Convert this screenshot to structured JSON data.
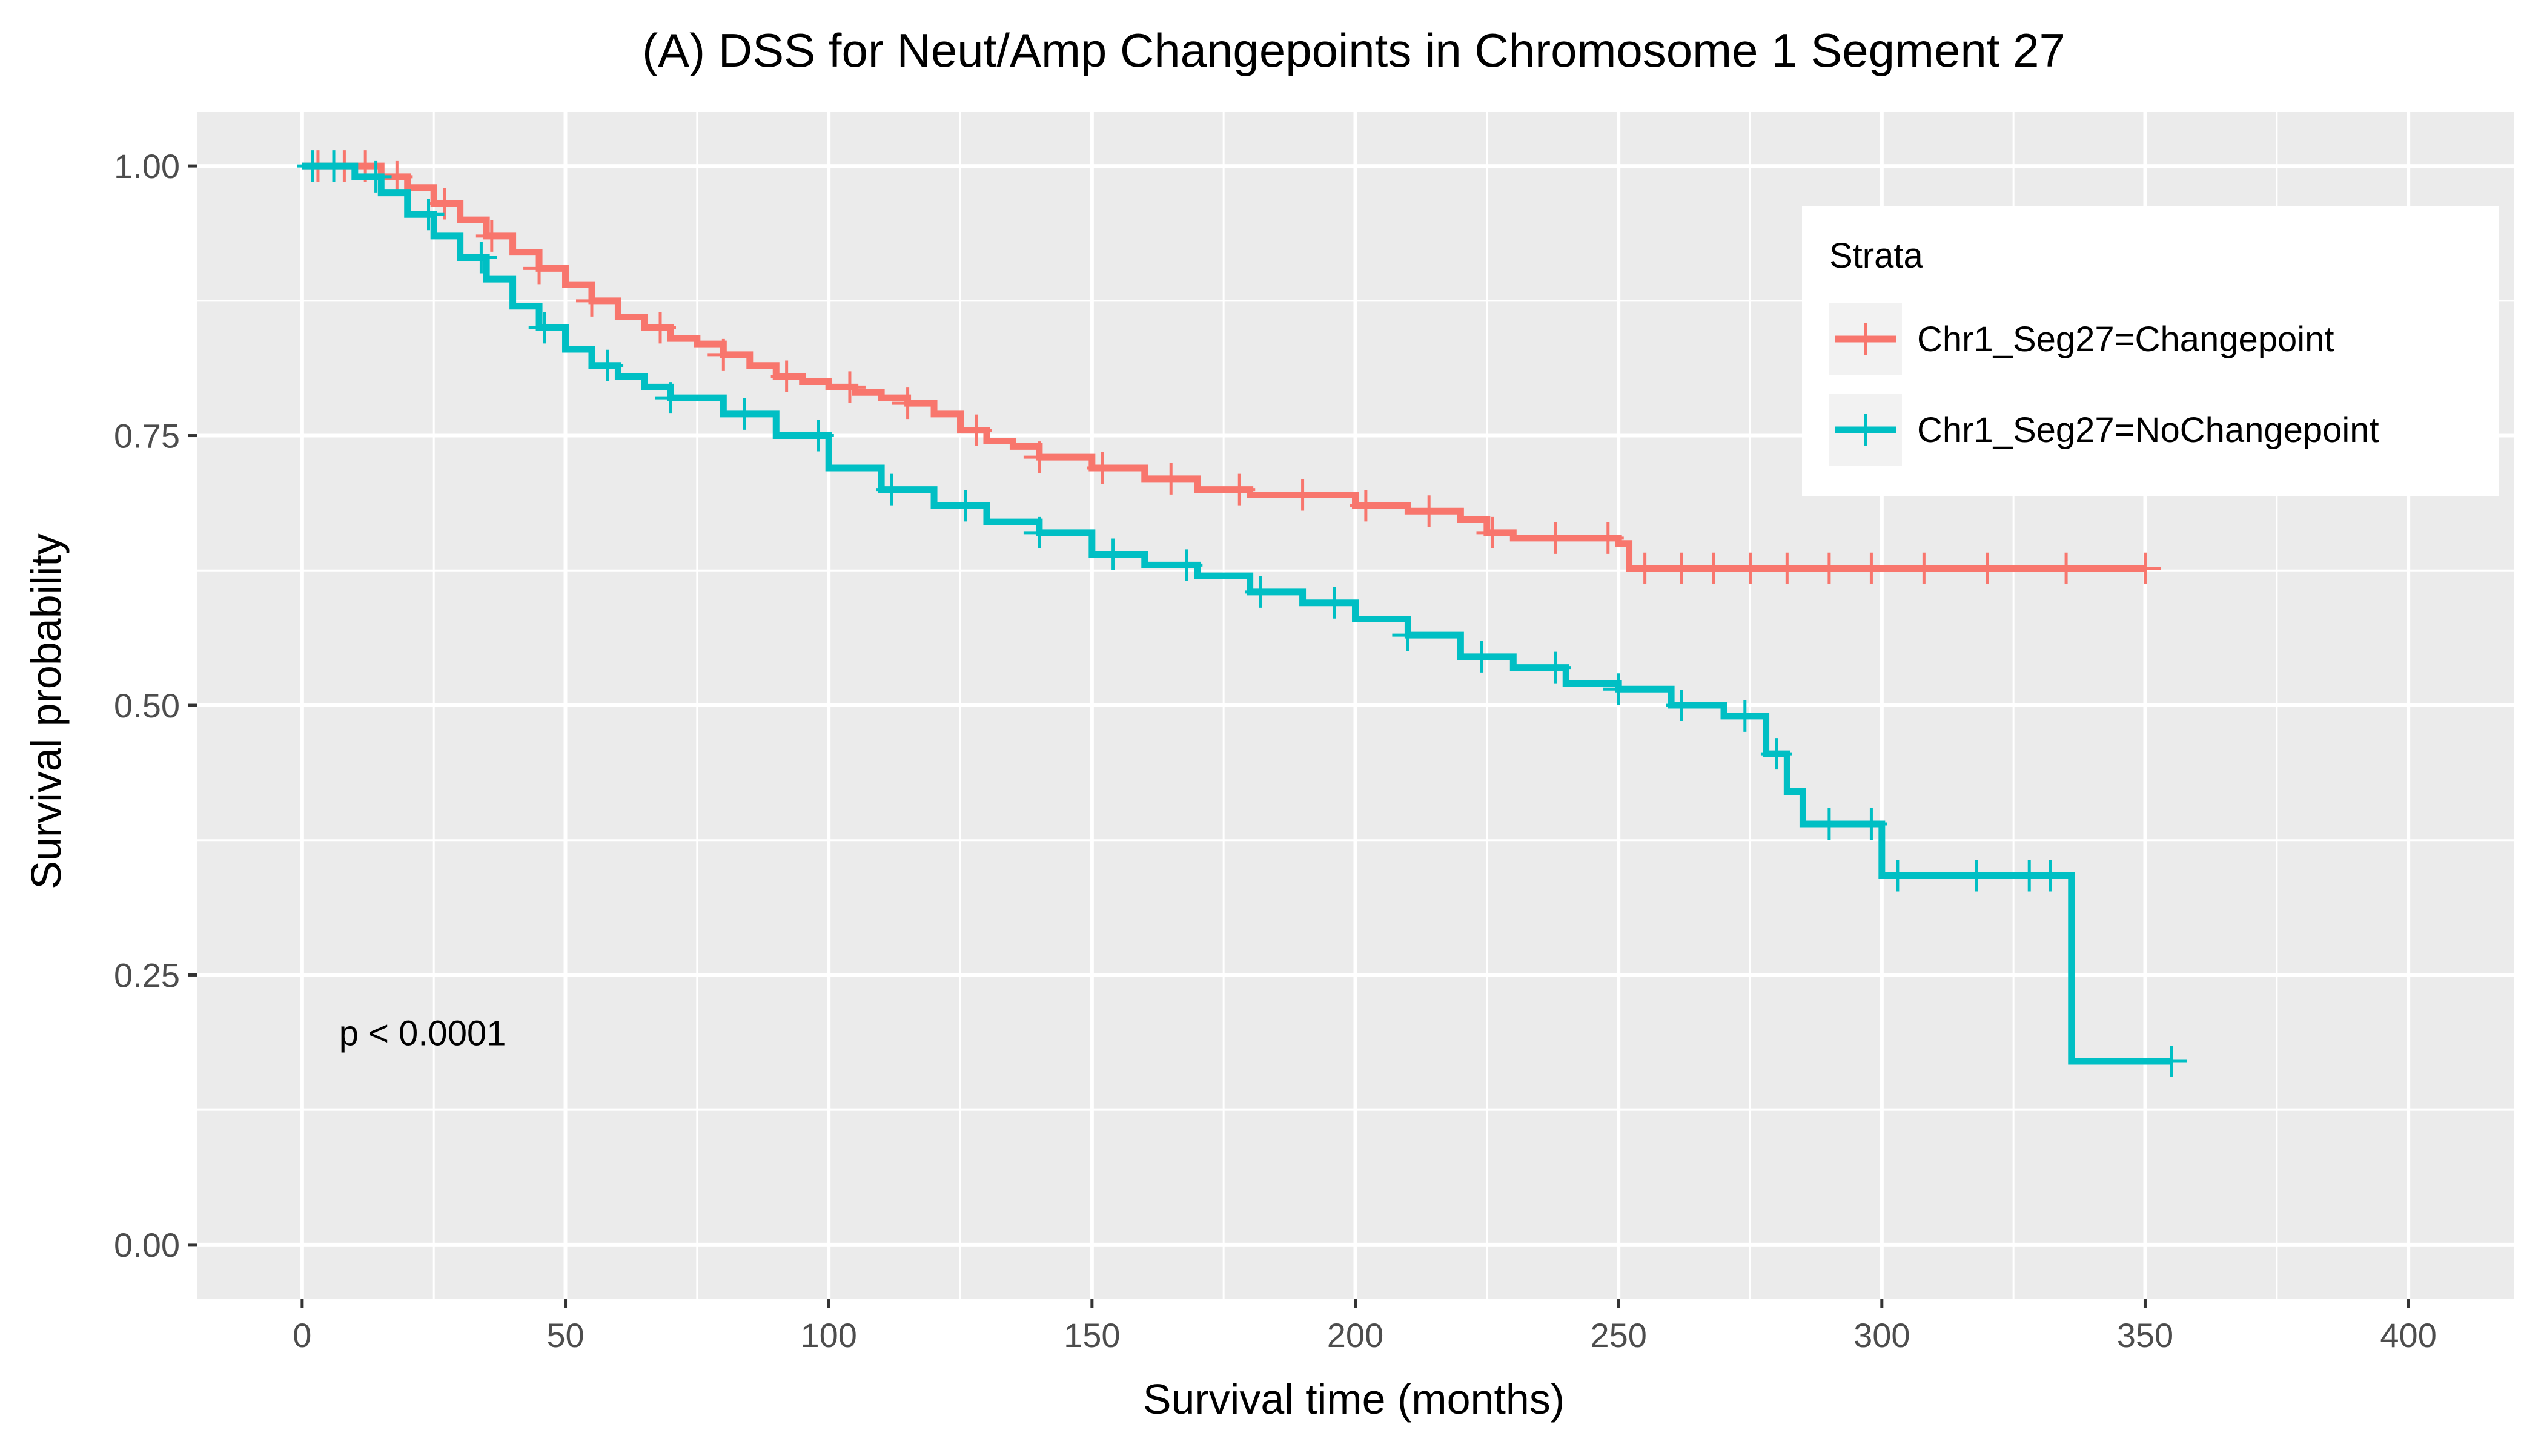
{
  "chart_data": {
    "type": "line",
    "title": "(A) DSS for Neut/Amp Changepoints in Chromosome 1 Segment 27",
    "xlabel": "Survival time (months)",
    "ylabel": "Survival probability",
    "xlim": [
      -20,
      420
    ],
    "ylim": [
      -0.05,
      1.05
    ],
    "xticks": [
      0,
      50,
      100,
      150,
      200,
      250,
      300,
      350,
      400
    ],
    "xtick_labels": [
      "0",
      "50",
      "100",
      "150",
      "200",
      "250",
      "300",
      "350",
      "400"
    ],
    "yticks": [
      0,
      0.25,
      0.5,
      0.75,
      1.0
    ],
    "ytick_labels": [
      "0.00",
      "0.25",
      "0.50",
      "0.75",
      "1.00"
    ],
    "grid": true,
    "annotation": "p < 0.0001",
    "legend": {
      "title": "Strata",
      "position": "top-right"
    },
    "series": [
      {
        "name": "Chr1_Seg27=Changepoint",
        "color": "#F8766D",
        "x": [
          0,
          10,
          15,
          20,
          25,
          30,
          35,
          40,
          45,
          50,
          55,
          60,
          65,
          70,
          75,
          80,
          85,
          90,
          95,
          100,
          105,
          110,
          115,
          120,
          125,
          130,
          135,
          140,
          150,
          160,
          170,
          180,
          190,
          200,
          210,
          220,
          225,
          230,
          240,
          250,
          252,
          350
        ],
        "y": [
          1.0,
          1.0,
          0.99,
          0.98,
          0.965,
          0.95,
          0.935,
          0.92,
          0.905,
          0.89,
          0.875,
          0.86,
          0.85,
          0.84,
          0.835,
          0.825,
          0.815,
          0.805,
          0.8,
          0.795,
          0.79,
          0.785,
          0.78,
          0.77,
          0.755,
          0.745,
          0.74,
          0.73,
          0.72,
          0.71,
          0.7,
          0.695,
          0.695,
          0.685,
          0.68,
          0.672,
          0.66,
          0.655,
          0.655,
          0.65,
          0.627,
          0.627
        ],
        "censor_x": [
          3,
          8,
          12,
          18,
          27,
          36,
          45,
          55,
          68,
          80,
          92,
          104,
          115,
          128,
          140,
          152,
          165,
          178,
          190,
          202,
          214,
          226,
          238,
          248,
          255,
          262,
          268,
          275,
          282,
          290,
          298,
          308,
          320,
          335,
          350
        ]
      },
      {
        "name": "Chr1_Seg27=NoChangepoint",
        "color": "#00BFC4",
        "x": [
          0,
          5,
          10,
          15,
          20,
          25,
          30,
          35,
          40,
          45,
          50,
          55,
          60,
          65,
          70,
          80,
          90,
          100,
          110,
          120,
          130,
          140,
          150,
          160,
          170,
          180,
          190,
          200,
          210,
          220,
          230,
          240,
          250,
          260,
          270,
          278,
          282,
          285,
          300,
          336,
          355
        ],
        "y": [
          1.0,
          1.0,
          0.99,
          0.975,
          0.955,
          0.935,
          0.915,
          0.895,
          0.87,
          0.85,
          0.83,
          0.815,
          0.805,
          0.795,
          0.785,
          0.77,
          0.75,
          0.72,
          0.7,
          0.685,
          0.67,
          0.66,
          0.64,
          0.63,
          0.62,
          0.605,
          0.595,
          0.58,
          0.565,
          0.545,
          0.535,
          0.52,
          0.515,
          0.5,
          0.49,
          0.455,
          0.42,
          0.39,
          0.342,
          0.17,
          0.17
        ],
        "censor_x": [
          2,
          6,
          14,
          24,
          34,
          46,
          58,
          70,
          84,
          98,
          112,
          126,
          140,
          154,
          168,
          182,
          196,
          210,
          224,
          238,
          250,
          262,
          274,
          280,
          290,
          298,
          303,
          318,
          328,
          332,
          355
        ]
      }
    ]
  }
}
